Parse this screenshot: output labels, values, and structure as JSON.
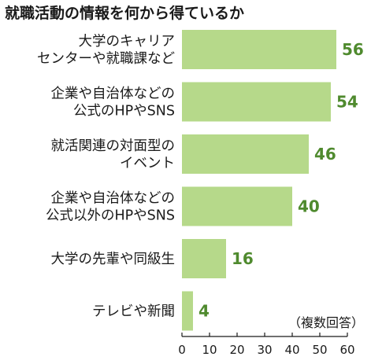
{
  "chart_data": {
    "type": "bar",
    "orientation": "horizontal",
    "title": "就職活動の情報を何から得ているか",
    "note": "（複数回答）",
    "categories": [
      [
        "大学のキャリア",
        "センターや就職課など"
      ],
      [
        "企業や自治体などの",
        "公式のHPやSNS"
      ],
      [
        "就活関連の対面型の",
        "イベント"
      ],
      [
        "企業や自治体などの",
        "公式以外のHPやSNS"
      ],
      [
        "大学の先輩や同級生"
      ],
      [
        "テレビや新聞"
      ]
    ],
    "values": [
      56,
      54,
      46,
      40,
      16,
      4
    ],
    "xlim": [
      0,
      60
    ],
    "xticks": [
      0,
      10,
      20,
      30,
      40,
      50,
      60
    ],
    "bar_color": "#b6d98a",
    "value_label_color": "#4f8a2e",
    "grid": false
  }
}
